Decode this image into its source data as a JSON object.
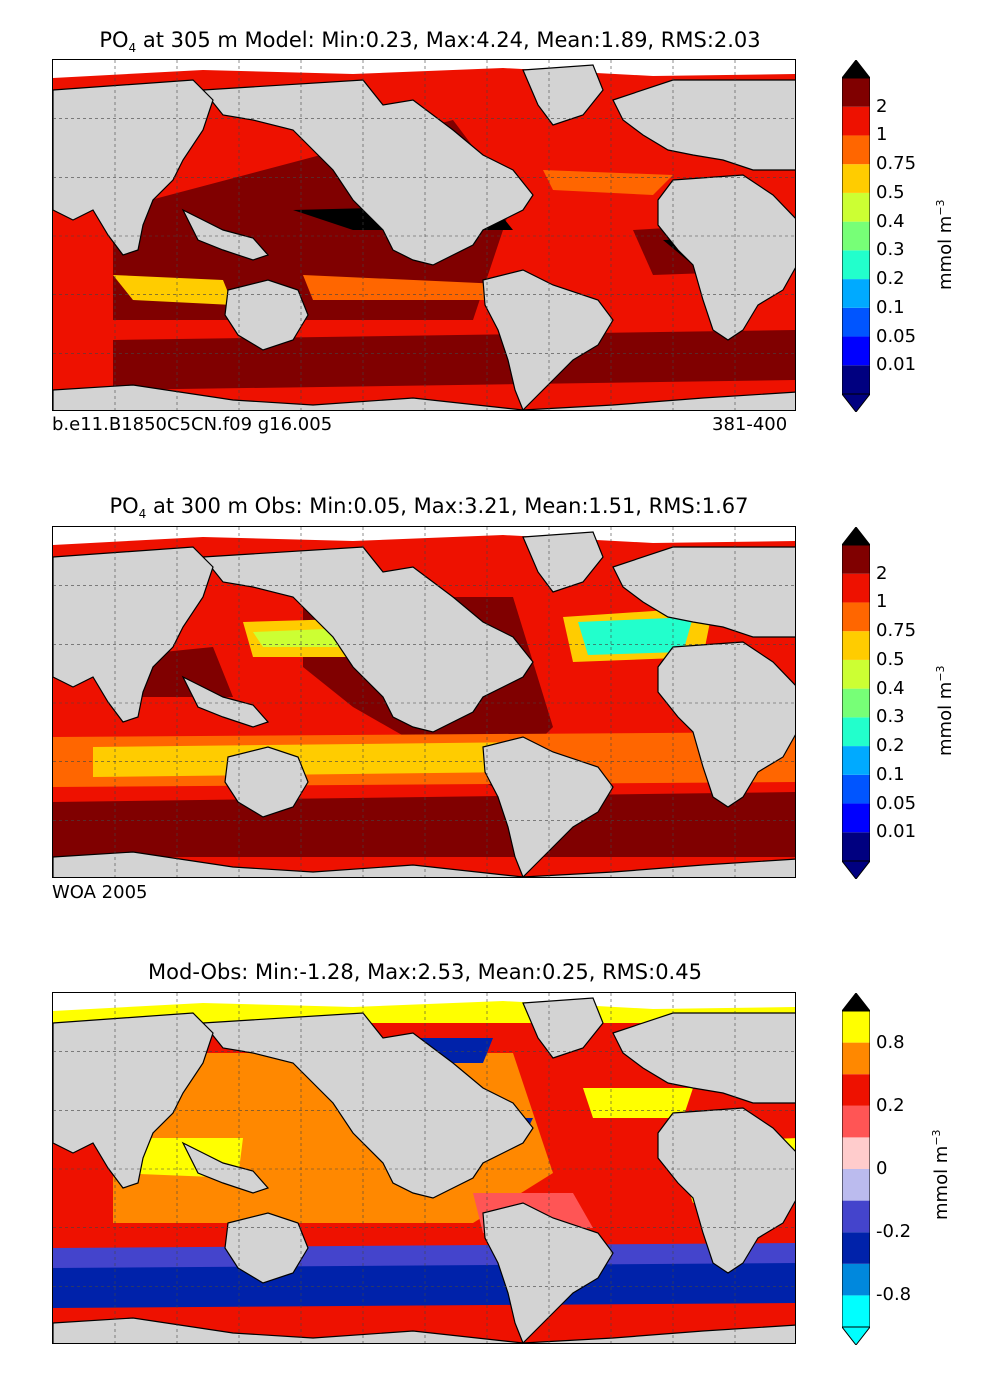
{
  "panels": [
    {
      "title_pre": "PO",
      "title_sub": "4",
      "title_post": " at 305 m Model: Min:0.23, Max:4.24, Mean:1.89, RMS:2.03",
      "note_left": "b.e11.B1850C5CN.f09 g16.005",
      "note_right": "381-400",
      "colorbar_ticks": [
        "2",
        "1",
        "0.75",
        "0.5",
        "0.4",
        "0.3",
        "0.2",
        "0.1",
        "0.05",
        "0.01"
      ],
      "colorbar_colors": [
        "#000080",
        "#0000ff",
        "#0055ff",
        "#00aaff",
        "#22ffcc",
        "#77ff77",
        "#ccff33",
        "#ffcc00",
        "#ff6600",
        "#ee1100",
        "#800000"
      ],
      "unit_label": "mmol m",
      "unit_sup": "−3",
      "ocean_color": "#ee1100",
      "palette": {
        "deep": "#800000",
        "max": "#000000",
        "mid": "#ff6600",
        "low": "#ffcc00"
      }
    },
    {
      "title_pre": "PO",
      "title_sub": "4",
      "title_post": " at 300 m Obs: Min:0.05, Max:3.21, Mean:1.51, RMS:1.67",
      "note_left": "WOA 2005",
      "note_right": "",
      "colorbar_ticks": [
        "2",
        "1",
        "0.75",
        "0.5",
        "0.4",
        "0.3",
        "0.2",
        "0.1",
        "0.05",
        "0.01"
      ],
      "colorbar_colors": [
        "#000080",
        "#0000ff",
        "#0055ff",
        "#00aaff",
        "#22ffcc",
        "#77ff77",
        "#ccff33",
        "#ffcc00",
        "#ff6600",
        "#ee1100",
        "#800000"
      ],
      "unit_label": "mmol m",
      "unit_sup": "−3",
      "ocean_color": "#ee1100",
      "palette": {
        "deep": "#800000",
        "max": "#000000",
        "mid": "#ff6600",
        "low": "#ffcc00",
        "lower": "#ccff33",
        "teal": "#22ffcc"
      }
    },
    {
      "title_pre": "",
      "title_sub": "",
      "title_post": "Mod-Obs: Min:-1.28, Max:2.53, Mean:0.25, RMS:0.45",
      "note_left": "",
      "note_right": "",
      "colorbar_ticks": [
        "0.8",
        "0.2",
        "0",
        "-0.2",
        "-0.8"
      ],
      "colorbar_colors": [
        "#00ffff",
        "#0088dd",
        "#0022aa",
        "#4444cc",
        "#bbbbee",
        "#ffcccc",
        "#ff5555",
        "#ee1100",
        "#ff8800",
        "#ffff00"
      ],
      "unit_label": "mmol m",
      "unit_sup": "−3",
      "ocean_color": "#ee1100",
      "palette": {
        "deep": "#ff5555",
        "max": "#ffff00",
        "mid": "#ff8800",
        "neg": "#0022aa",
        "neg2": "#4444cc"
      }
    }
  ],
  "land_color": "#d3d3d3"
}
